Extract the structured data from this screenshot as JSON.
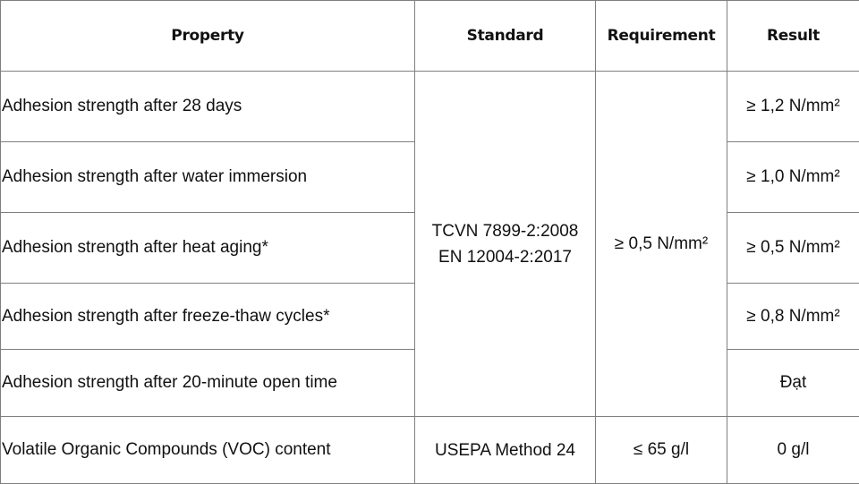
{
  "table": {
    "headers": {
      "property": "Property",
      "standard": "Standard",
      "requirement": "Requirement",
      "result": "Result"
    },
    "adhesion_group": {
      "standard_lines": [
        "TCVN 7899-2:2008",
        "EN 12004-2:2017"
      ],
      "requirement": "≥ 0,5 N/mm²",
      "rows": [
        {
          "property": "Adhesion strength after 28 days",
          "result": "≥ 1,2 N/mm²"
        },
        {
          "property": "Adhesion strength after water immersion",
          "result": "≥ 1,0 N/mm²"
        },
        {
          "property": "Adhesion strength after heat aging*",
          "result": "≥ 0,5 N/mm²"
        },
        {
          "property": "Adhesion strength after freeze-thaw cycles*",
          "result": "≥ 0,8 N/mm²"
        },
        {
          "property": "Adhesion strength after 20-minute open time",
          "result": "Đạt"
        }
      ]
    },
    "voc_row": {
      "property": "Volatile Organic Compounds (VOC) content",
      "standard": "USEPA Method 24",
      "requirement": "≤ 65 g/l",
      "result": "0 g/l"
    }
  }
}
